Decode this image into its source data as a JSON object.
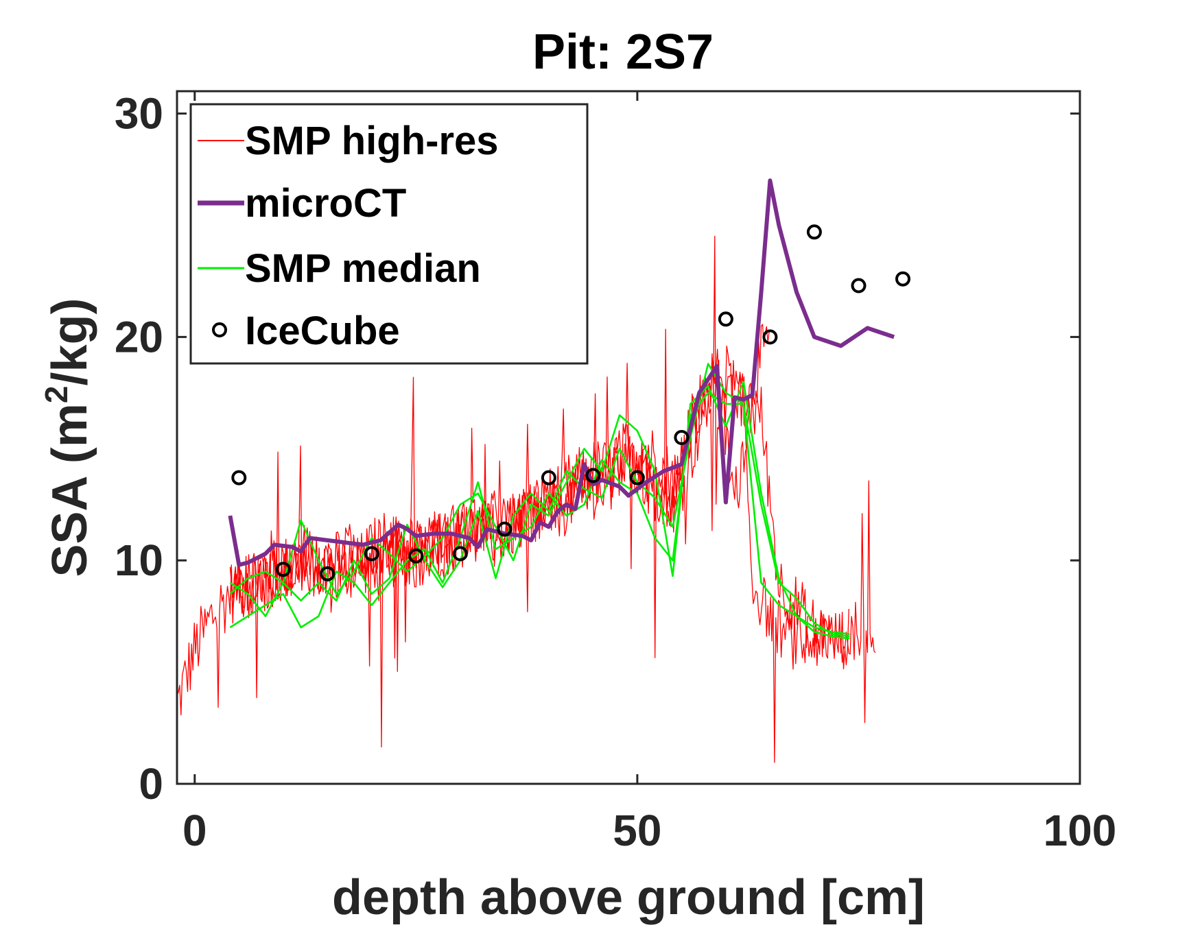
{
  "chart_data": {
    "type": "line",
    "title": "Pit: 2S7",
    "xlabel": "depth above ground [cm]",
    "ylabel": "SSA (m²/kg)",
    "ylabel_parts": {
      "pre": "SSA (m",
      "sup": "2",
      "post": "/kg)"
    },
    "xlim": [
      -2,
      100
    ],
    "ylim": [
      0,
      31
    ],
    "xticks": [
      0,
      50,
      100
    ],
    "xtick_labels": [
      "0",
      "50",
      "100"
    ],
    "yticks": [
      0,
      10,
      20,
      30
    ],
    "ytick_labels": [
      "0",
      "10",
      "20",
      "30"
    ],
    "grid": false,
    "legend_position": "top-left",
    "legend": [
      {
        "label": "SMP high-res",
        "series_key": "smp_highres"
      },
      {
        "label": "microCT",
        "series_key": "microct"
      },
      {
        "label": "SMP median",
        "series_key": "smp_median"
      },
      {
        "label": "IceCube",
        "series_key": "icecube"
      }
    ],
    "colors": {
      "smp_highres": "#ff0000",
      "microct": "#7b2d8e",
      "smp_median": "#00ee00",
      "icecube": "#000000",
      "axes": "#262626"
    },
    "series": [
      {
        "key": "smp_highres",
        "name": "SMP high-res",
        "style": "line-thin",
        "profiles": [
          {
            "x": [
              -2,
              0,
              2,
              4,
              5,
              7,
              9,
              11,
              13,
              15,
              17,
              19,
              21,
              23,
              25,
              27,
              29,
              31,
              33,
              35,
              37,
              39,
              41,
              43,
              45,
              47,
              49,
              51,
              53,
              55,
              57,
              59,
              61,
              63,
              65
            ],
            "y": [
              3.5,
              6,
              7.5,
              8.5,
              9,
              9.5,
              10,
              9.5,
              10,
              9,
              9.5,
              10,
              9.5,
              10.5,
              10,
              11,
              10.5,
              11.5,
              11,
              11.5,
              12,
              12.5,
              13,
              13.5,
              14,
              14,
              15,
              15,
              14,
              13.5,
              16,
              18.5,
              12.5,
              18,
              20
            ],
            "noise": 3
          },
          {
            "x": [
              4,
              6,
              8,
              10,
              12,
              14,
              16,
              18,
              20,
              22,
              24,
              26,
              28,
              30,
              32,
              34,
              36,
              38,
              40,
              42,
              44,
              46,
              48,
              50,
              52,
              54,
              56,
              58,
              60,
              62,
              64,
              66,
              68,
              70,
              72,
              74
            ],
            "y": [
              8,
              9,
              9.5,
              9,
              10.5,
              10,
              10,
              9.5,
              10.5,
              11,
              10,
              11,
              10.5,
              11,
              11.5,
              11,
              11.5,
              12,
              12,
              12.5,
              13.5,
              13,
              14.5,
              14,
              13,
              12,
              16,
              17.5,
              17,
              17,
              16.5,
              9,
              8,
              7,
              6.5,
              6.5
            ],
            "noise": 2.8
          },
          {
            "x": [
              4,
              6,
              8,
              10,
              12,
              14,
              16,
              18,
              20,
              22,
              24,
              26,
              28,
              30,
              32,
              34,
              36,
              38,
              40,
              42,
              44,
              46,
              48,
              50,
              52,
              54,
              56,
              58,
              60,
              62,
              63,
              65,
              67,
              69,
              71,
              73,
              75,
              77
            ],
            "y": [
              9,
              8.5,
              9,
              9.5,
              10,
              9.5,
              10,
              10.5,
              10,
              10.5,
              11,
              10.5,
              11,
              11.5,
              11,
              12,
              11.5,
              12,
              12.5,
              13,
              13.5,
              13,
              14,
              14.5,
              13,
              12.5,
              16,
              18,
              18.5,
              17,
              9,
              7.5,
              6.5,
              6.2,
              6.5,
              6.3,
              7,
              7
            ],
            "noise": 2.6
          }
        ]
      },
      {
        "key": "microct",
        "name": "microCT",
        "style": "line-thick",
        "x": [
          4,
          5,
          6,
          8,
          9,
          11,
          12,
          13,
          15,
          17,
          19,
          21,
          23,
          24,
          25,
          27,
          29,
          31,
          32,
          33,
          35,
          37,
          38,
          39,
          40,
          41,
          42,
          43,
          44,
          45,
          46,
          48,
          49,
          51,
          53,
          55,
          57,
          59,
          60,
          61,
          62,
          63,
          64,
          65,
          66,
          68,
          70,
          73,
          76,
          79
        ],
        "y": [
          12,
          9.8,
          9.9,
          10.3,
          10.7,
          10.6,
          10.4,
          11,
          10.9,
          10.8,
          10.7,
          10.9,
          11.6,
          11.4,
          11.1,
          11.2,
          11.2,
          11,
          10.6,
          11.4,
          11.2,
          11.1,
          10.9,
          11.7,
          11.5,
          12.2,
          12.5,
          12.3,
          14.3,
          13.4,
          13.6,
          13.3,
          12.9,
          13.5,
          14,
          14.3,
          17.5,
          18.7,
          12.6,
          17.3,
          17.2,
          17.4,
          22,
          27,
          25,
          22,
          20,
          19.6,
          20.4,
          20
        ]
      },
      {
        "key": "smp_median",
        "name": "SMP median",
        "style": "line-medium",
        "profiles": [
          {
            "x": [
              4,
              6,
              8,
              10,
              12,
              14,
              16,
              18,
              20,
              22,
              24,
              26,
              28,
              30,
              32,
              34,
              36,
              38,
              40,
              42,
              44,
              46,
              48,
              50,
              52,
              54,
              56,
              58,
              60,
              62,
              64,
              66,
              68,
              70,
              72,
              74
            ],
            "y": [
              7,
              7.5,
              8,
              8.5,
              7,
              7.5,
              9.5,
              9,
              8,
              9,
              10,
              10.5,
              9,
              11,
              13.5,
              10.5,
              11,
              11.5,
              13,
              12,
              12.5,
              14.5,
              13.5,
              13,
              11,
              10,
              16.5,
              17.5,
              17,
              17,
              9,
              8,
              7.5,
              7,
              6.8,
              6.7
            ]
          },
          {
            "x": [
              4,
              6,
              8,
              10,
              12,
              14,
              16,
              18,
              20,
              22,
              24,
              26,
              28,
              30,
              32,
              34,
              36,
              38,
              40,
              42,
              44,
              46,
              48,
              50,
              52,
              54,
              56,
              58,
              60,
              62,
              64,
              66,
              68,
              70,
              72,
              74
            ],
            "y": [
              8.5,
              9.2,
              9.5,
              9,
              11.8,
              10,
              8.5,
              9.5,
              11,
              10.3,
              9.5,
              10.2,
              11,
              12.5,
              13,
              11.5,
              10,
              12.5,
              12,
              13.5,
              15,
              14,
              16.5,
              15.8,
              14,
              9.3,
              17,
              17.8,
              16,
              18,
              13,
              9.2,
              7.5,
              6.8,
              6.6,
              6.5
            ]
          },
          {
            "x": [
              4,
              6,
              8,
              10,
              12,
              14,
              16,
              18,
              20,
              22,
              24,
              26,
              28,
              30,
              32,
              34,
              36,
              38,
              40,
              42,
              44,
              46,
              48,
              50,
              52,
              54,
              56,
              58,
              60,
              62,
              64,
              66,
              68,
              70,
              72,
              74
            ],
            "y": [
              9,
              8.5,
              7.5,
              9,
              8.2,
              9,
              8.2,
              10,
              8.5,
              9.2,
              11.6,
              10,
              8.8,
              10,
              12.2,
              9.2,
              12,
              13,
              12.2,
              14,
              13.2,
              12.8,
              15,
              13.5,
              12.8,
              11.5,
              15.5,
              18.8,
              17.5,
              17,
              12.5,
              9,
              8.3,
              7.2,
              6.7,
              6.6
            ]
          }
        ]
      },
      {
        "key": "icecube",
        "name": "IceCube",
        "style": "markers-circle",
        "x": [
          5,
          10,
          15,
          20,
          25,
          30,
          35,
          40,
          45,
          50,
          55,
          60,
          65,
          70,
          75,
          80
        ],
        "y": [
          13.7,
          9.6,
          9.4,
          10.3,
          10.2,
          10.3,
          11.4,
          13.7,
          13.8,
          13.7,
          15.5,
          20.8,
          20,
          24.7,
          22.3,
          22.6
        ]
      }
    ]
  }
}
